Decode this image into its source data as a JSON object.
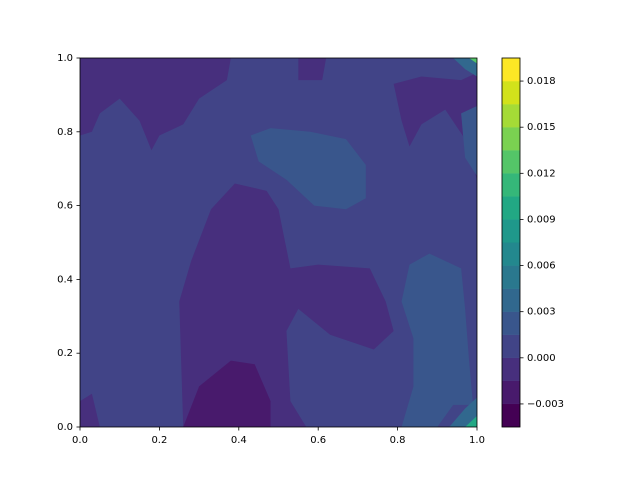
{
  "chart_data": {
    "type": "contourf",
    "xlim": [
      0,
      1
    ],
    "ylim": [
      0,
      1
    ],
    "xticks": [
      {
        "value": 0,
        "label": "0.0"
      },
      0.2,
      0.4,
      0.6,
      0.8,
      {
        "value": 1,
        "label": "1.0"
      }
    ],
    "yticks": [
      {
        "value": 0,
        "label": "0.0"
      },
      0.2,
      0.4,
      0.6,
      0.8,
      {
        "value": 1,
        "label": "1.0"
      }
    ],
    "levels": [
      -0.0045,
      -0.003,
      -0.0015,
      0,
      0.0015,
      0.003,
      0.0045,
      0.006,
      0.0075,
      0.009,
      0.0105,
      0.012,
      0.0135,
      0.015,
      0.0165,
      0.018,
      0.0195
    ],
    "colors": [
      "#440154",
      "#481a6c",
      "#472f7d",
      "#414487",
      "#39568c",
      "#31688e",
      "#2a788e",
      "#23888e",
      "#1f988b",
      "#22a884",
      "#35b779",
      "#54c568",
      "#7ad151",
      "#a5db36",
      "#d2e21b",
      "#fde725"
    ],
    "cticks": [
      {
        "value": -0.003,
        "label": "−0.003"
      },
      {
        "value": 0,
        "label": "0.000"
      },
      0.003,
      0.006,
      0.009,
      0.012,
      0.015,
      0.018
    ],
    "regions": [
      {
        "level": 0,
        "x": [
          0,
          1,
          1,
          0
        ],
        "y": [
          0,
          0,
          1,
          1
        ]
      },
      {
        "level": -0.0015,
        "x": [
          0,
          0.38,
          0.37,
          0.3,
          0.26,
          0.2,
          0.18,
          0.15,
          0.1,
          0.05,
          0.03,
          0
        ],
        "y": [
          1,
          1,
          0.94,
          0.89,
          0.82,
          0.79,
          0.75,
          0.83,
          0.89,
          0.85,
          0.8,
          0.79
        ]
      },
      {
        "level": -0.0015,
        "x": [
          0.26,
          0.25,
          0.28,
          0.33,
          0.39,
          0.47,
          0.5,
          0.53,
          0.6,
          0.73,
          0.77,
          0.79,
          0.74,
          0.63,
          0.55,
          0.52,
          0.53,
          0.57
        ],
        "y": [
          0,
          0.34,
          0.45,
          0.59,
          0.66,
          0.64,
          0.59,
          0.43,
          0.44,
          0.43,
          0.34,
          0.26,
          0.21,
          0.25,
          0.32,
          0.26,
          0.07,
          0
        ]
      },
      {
        "level": -0.003,
        "x": [
          0.26,
          0.3,
          0.38,
          0.44,
          0.48,
          0.48
        ],
        "y": [
          0,
          0.11,
          0.18,
          0.17,
          0.07,
          0
        ]
      },
      {
        "level": -0.0015,
        "x": [
          0,
          0.03,
          0.05,
          0
        ],
        "y": [
          0.07,
          0.09,
          0,
          0
        ]
      },
      {
        "level": -0.0015,
        "x": [
          0.55,
          0.62,
          0.61,
          0.55
        ],
        "y": [
          1,
          1,
          0.94,
          0.94
        ]
      },
      {
        "level": -0.0015,
        "x": [
          0.79,
          0.86,
          0.96,
          1,
          1,
          0.97,
          0.92,
          0.86,
          0.83,
          0.81
        ],
        "y": [
          0.93,
          0.95,
          0.94,
          0.96,
          0.67,
          0.78,
          0.86,
          0.82,
          0.76,
          0.83
        ]
      },
      {
        "level": 0.0015,
        "x": [
          0.43,
          0.48,
          0.58,
          0.67,
          0.72,
          0.72,
          0.67,
          0.59,
          0.52,
          0.45
        ],
        "y": [
          0.79,
          0.81,
          0.8,
          0.78,
          0.71,
          0.62,
          0.59,
          0.6,
          0.67,
          0.72
        ]
      },
      {
        "level": 0.0015,
        "x": [
          0.81,
          0.83,
          0.88,
          0.96,
          0.97,
          0.98,
          0.99,
          0.94,
          0.9,
          0.81,
          0.84,
          0.84
        ],
        "y": [
          0.34,
          0.44,
          0.47,
          0.43,
          0.32,
          0.18,
          0.06,
          0.06,
          0,
          0,
          0.11,
          0.24
        ]
      },
      {
        "level": 0.0015,
        "x": [
          0.96,
          1,
          1,
          0.97
        ],
        "y": [
          0.85,
          0.87,
          0.68,
          0.73
        ]
      },
      {
        "level": 0.003,
        "x": [
          0.93,
          0.97,
          1,
          1
        ],
        "y": [
          0,
          0.05,
          0.08,
          0
        ]
      },
      {
        "level": 0.009,
        "x": [
          0.97,
          1,
          1,
          0.985
        ],
        "y": [
          0,
          0.03,
          0,
          0
        ]
      },
      {
        "level": 0.003,
        "x": [
          0.94,
          0.97,
          1,
          1
        ],
        "y": [
          1,
          0.97,
          0.95,
          1
        ]
      },
      {
        "level": 0.012,
        "x": [
          0.98,
          1,
          1
        ],
        "y": [
          1,
          0.985,
          1
        ]
      }
    ]
  }
}
